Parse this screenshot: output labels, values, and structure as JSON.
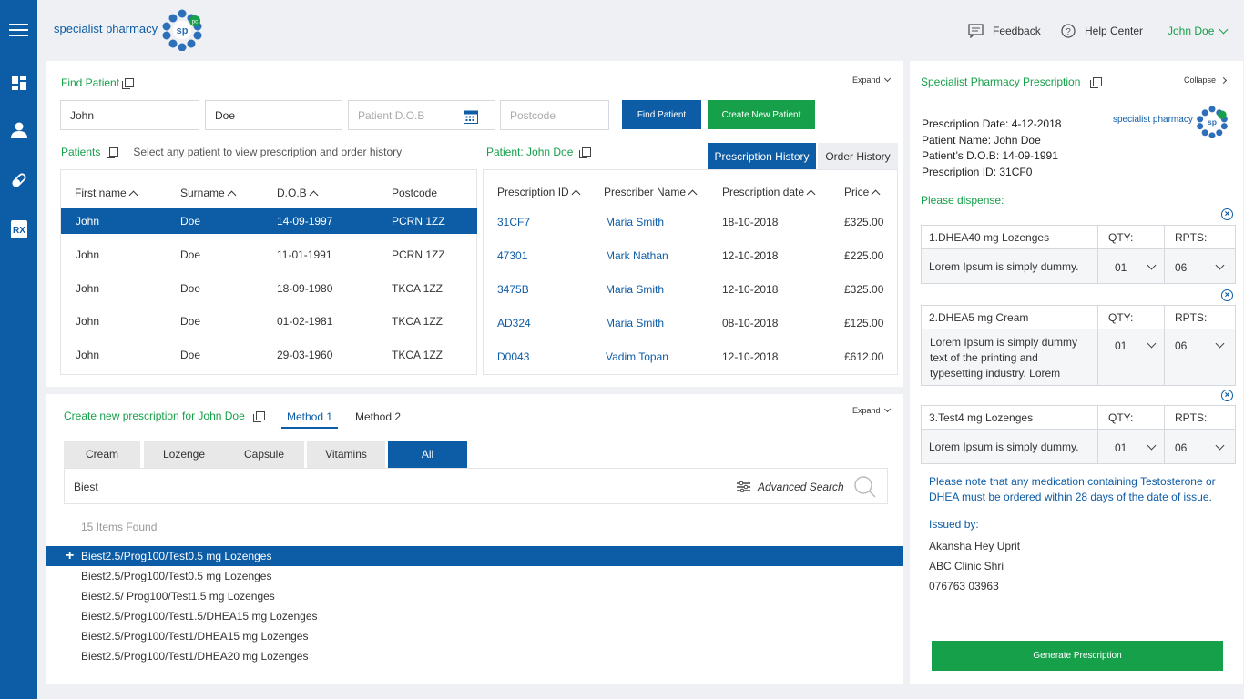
{
  "brand": {
    "name": "specialist pharmacy",
    "logo_text": "sp",
    "logo_badge": "pc"
  },
  "topbar": {
    "feedback": "Feedback",
    "help": "Help Center",
    "user": "John Doe"
  },
  "find_patient": {
    "title": "Find Patient",
    "expand": "Expand",
    "first_name": "John",
    "surname": "Doe",
    "dob_placeholder": "Patient D.O.B",
    "postcode_placeholder": "Postcode",
    "find_btn": "Find Patient",
    "create_btn": "Create New Patient"
  },
  "patients": {
    "title": "Patients",
    "hint": "Select any patient to view prescription and order history",
    "columns": [
      "First name",
      "Surname",
      "D.O.B",
      "Postcode"
    ],
    "rows": [
      [
        "John",
        "Doe",
        "14-09-1997",
        "PCRN 1ZZ"
      ],
      [
        "John",
        "Doe",
        "11-01-1991",
        "PCRN 1ZZ"
      ],
      [
        "John",
        "Doe",
        "18-09-1980",
        "TKCA 1ZZ"
      ],
      [
        "John",
        "Doe",
        "01-02-1981",
        "TKCA 1ZZ"
      ],
      [
        "John",
        "Doe",
        "29-03-1960",
        "TKCA 1ZZ"
      ]
    ]
  },
  "patient_history": {
    "title": "Patient: John Doe",
    "tabs": [
      "Prescription History",
      "Order History"
    ],
    "columns": [
      "Prescription ID",
      "Prescriber Name",
      "Prescription date",
      "Price"
    ],
    "rows": [
      [
        "31CF7",
        "Maria Smith",
        "18-10-2018",
        "£325.00"
      ],
      [
        "47301",
        "Mark Nathan",
        "12-10-2018",
        "£225.00"
      ],
      [
        "3475B",
        "Maria Smith",
        "12-10-2018",
        "£325.00"
      ],
      [
        "AD324",
        "Maria Smith",
        "08-10-2018",
        "£125.00"
      ],
      [
        "D0043",
        "Vadim Topan",
        "12-10-2018",
        "£612.00"
      ]
    ]
  },
  "new_rx": {
    "title": "Create new prescription for John Doe",
    "methods": [
      "Method 1",
      "Method 2"
    ],
    "expand": "Expand",
    "categories": [
      "Cream",
      "Lozenge",
      "Capsule",
      "Vitamins",
      "All"
    ],
    "search_value": "Biest",
    "advanced": "Advanced Search",
    "found": "15 Items Found",
    "items": [
      "Biest2.5/Prog100/Test0.5 mg Lozenges",
      "Biest2.5/Prog100/Test0.5 mg Lozenges",
      "Biest2.5/ Prog100/Test1.5 mg Lozenges",
      "Biest2.5/Prog100/Test1.5/DHEA15 mg Lozenges",
      "Biest2.5/Prog100/Test1/DHEA15 mg Lozenges",
      "Biest2.5/Prog100/Test1/DHEA20 mg Lozenges"
    ]
  },
  "sp_rx": {
    "title": "Specialist Pharmacy Prescription",
    "collapse": "Collapse",
    "date": "Prescription Date: 4-12-2018",
    "patient": "Patient Name: John Doe",
    "dob": "Patient’s D.O.B: 14-09-1991",
    "id": "Prescription ID: 31CF0",
    "dispense": "Please dispense:",
    "qty_label": "QTY:",
    "rpts_label": "RPTS:",
    "meds": [
      {
        "name": "1.DHEA40 mg Lozenges",
        "desc": "Lorem Ipsum is simply dummy.",
        "qty": "01",
        "rpts": "06"
      },
      {
        "name": "2.DHEA5 mg Cream",
        "desc": "Lorem Ipsum is simply dummy text of the printing and typesetting industry. Lorem",
        "qty": "01",
        "rpts": "06"
      },
      {
        "name": "3.Test4 mg Lozenges",
        "desc": "Lorem Ipsum is simply dummy.",
        "qty": "01",
        "rpts": "06"
      }
    ],
    "note": "Please note that any medication containing Testosterone or DHEA must be ordered within 28 days of the date of issue.",
    "issued_by": "Issued by:",
    "issuer": "Akansha Hey Uprit",
    "clinic": "ABC Clinic Shri",
    "phone": "076763 03963",
    "generate": "Generate Prescription"
  },
  "colors": {
    "primary": "#0d5ca6",
    "accent": "#17a04a"
  }
}
